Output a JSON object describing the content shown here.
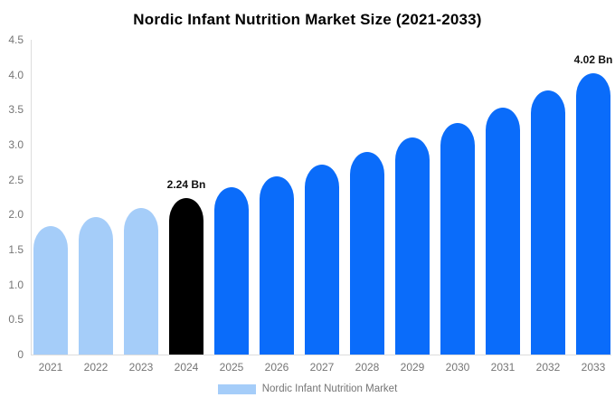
{
  "title": "Nordic Infant Nutrition Market Size (2021-2033)",
  "legend": {
    "label": "Nordic Infant Nutrition Market",
    "swatch_color": "#a5cdf9"
  },
  "colors": {
    "past_bar": "#a5cdf9",
    "highlight_bar": "#000000",
    "forecast_bar": "#0a6cfa",
    "axis_line": "#dddddd",
    "tick_text": "#757575",
    "label_text": "#111111",
    "background": "#ffffff"
  },
  "chart_data": {
    "type": "bar",
    "title": "Nordic Infant Nutrition Market Size (2021-2033)",
    "xlabel": "",
    "ylabel": "",
    "categories": [
      "2021",
      "2022",
      "2023",
      "2024",
      "2025",
      "2026",
      "2027",
      "2028",
      "2029",
      "2030",
      "2031",
      "2032",
      "2033"
    ],
    "values": [
      1.84,
      1.97,
      2.1,
      2.24,
      2.39,
      2.55,
      2.72,
      2.9,
      3.1,
      3.31,
      3.53,
      3.77,
      4.02
    ],
    "unit": "Bn",
    "bar_colors": [
      "#a5cdf9",
      "#a5cdf9",
      "#a5cdf9",
      "#000000",
      "#0a6cfa",
      "#0a6cfa",
      "#0a6cfa",
      "#0a6cfa",
      "#0a6cfa",
      "#0a6cfa",
      "#0a6cfa",
      "#0a6cfa",
      "#0a6cfa"
    ],
    "annotations": [
      {
        "category": "2024",
        "text": "2.24 Bn"
      },
      {
        "category": "2033",
        "text": "4.02 Bn"
      }
    ],
    "ylim": [
      0,
      4.5
    ],
    "yticks": [
      "0",
      "0.5",
      "1.0",
      "1.5",
      "2.0",
      "2.5",
      "3.0",
      "3.5",
      "4.0",
      "4.5"
    ],
    "grid": false,
    "legend_position": "bottom",
    "legend_entries": [
      "Nordic Infant Nutrition Market"
    ]
  }
}
